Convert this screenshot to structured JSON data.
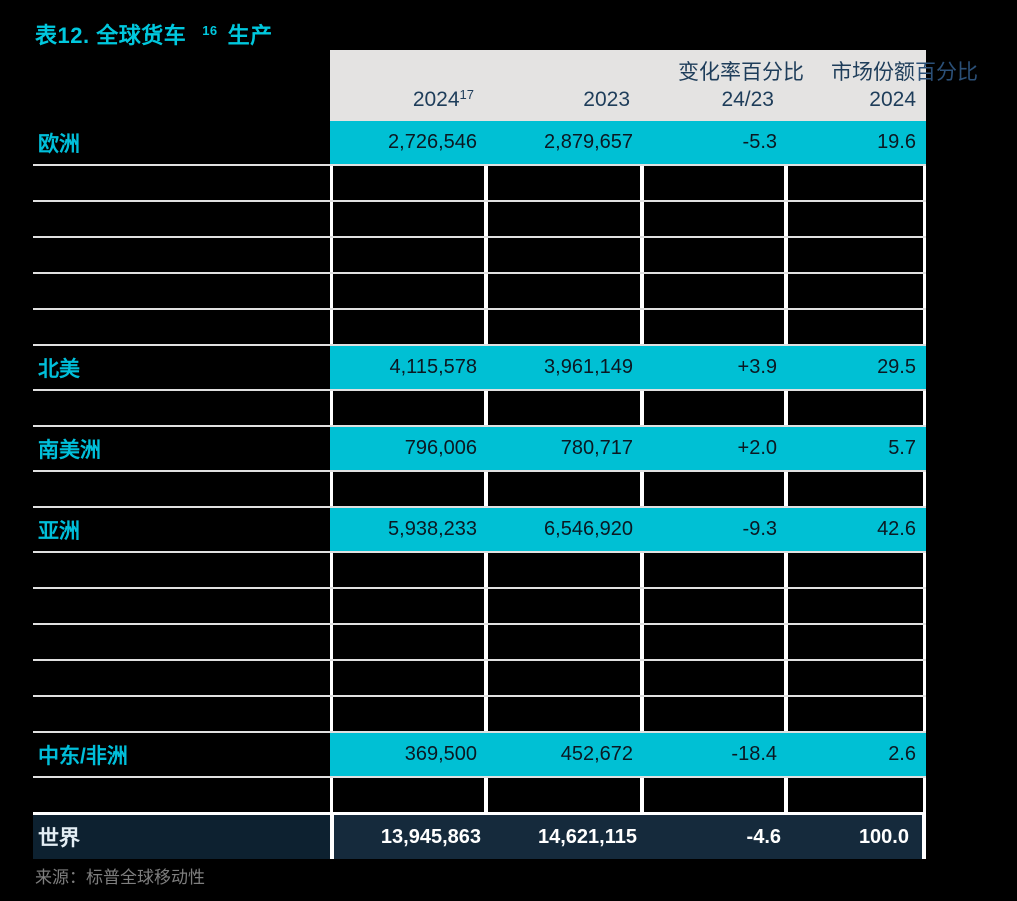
{
  "title": {
    "prefix": "表12. 全球货车",
    "footnote": "16",
    "suffix": "生产"
  },
  "header": {
    "col1": {
      "label": "2024",
      "footnote": "17"
    },
    "col2": {
      "label": "2023"
    },
    "col3": {
      "line1": "变化率百分比",
      "line2": "24/23"
    },
    "col4": {
      "line1_inside": "市场份额",
      "line1_overflow": "百分比",
      "line2": "2024"
    }
  },
  "table": {
    "columns": [
      "2024",
      "2023",
      "变化率百分比 24/23",
      "市场份额百分比 2024"
    ],
    "rows": [
      {
        "type": "data",
        "label": "欧洲",
        "values": [
          "2,726,546",
          "2,879,657",
          "-5.3",
          "19.6"
        ]
      },
      {
        "type": "hidden"
      },
      {
        "type": "hidden"
      },
      {
        "type": "hidden"
      },
      {
        "type": "hidden"
      },
      {
        "type": "hidden"
      },
      {
        "type": "data",
        "label": "北美",
        "values": [
          "4,115,578",
          "3,961,149",
          "+3.9",
          "29.5"
        ]
      },
      {
        "type": "hidden"
      },
      {
        "type": "data",
        "label": "南美洲",
        "values": [
          "796,006",
          "780,717",
          "+2.0",
          "5.7"
        ]
      },
      {
        "type": "hidden"
      },
      {
        "type": "data",
        "label": "亚洲",
        "values": [
          "5,938,233",
          "6,546,920",
          "-9.3",
          "42.6"
        ]
      },
      {
        "type": "hidden"
      },
      {
        "type": "hidden"
      },
      {
        "type": "hidden"
      },
      {
        "type": "hidden"
      },
      {
        "type": "hidden"
      },
      {
        "type": "data",
        "label": "中东/非洲",
        "values": [
          "369,500",
          "452,672",
          "-18.4",
          "2.6"
        ]
      },
      {
        "type": "hidden"
      },
      {
        "type": "total",
        "label": "世界",
        "values": [
          "13,945,863",
          "14,621,115",
          "-4.6",
          "100.0"
        ]
      }
    ]
  },
  "source": "来源：标普全球移动性",
  "colors": {
    "background": "#000000",
    "accent_cyan": "#00c0d4",
    "title_cyan": "#00c8de",
    "header_gray": "#e4e3e2",
    "header_text_navy": "#1e3d5a",
    "total_row_navy": "#152a3c",
    "separator_gray": "#e0e0e0",
    "source_gray": "#7e7e7e"
  }
}
